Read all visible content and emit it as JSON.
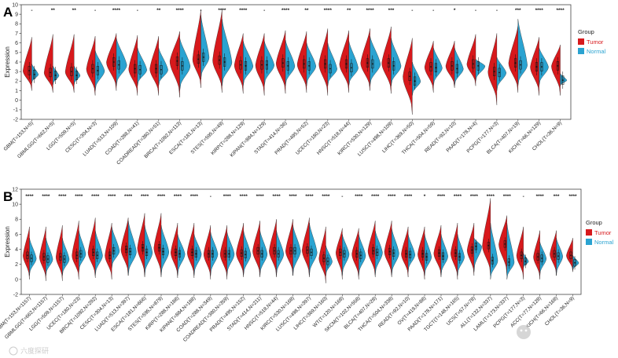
{
  "colors": {
    "tumor": "#d7191c",
    "normal": "#2aa3d1"
  },
  "watermark": {
    "right_text": "中科生信",
    "left_text": "六度探研"
  },
  "chart_data": [
    {
      "type": "violin",
      "panel_label": "A",
      "ylabel": "Expression",
      "ylim": [
        -2,
        10
      ],
      "yticks": [
        -2,
        -1,
        0,
        1,
        2,
        3,
        4,
        5,
        6,
        7,
        8,
        9,
        10
      ],
      "legend": {
        "title": "Group",
        "position": "right",
        "entries": [
          "Tumor",
          "Normal"
        ]
      },
      "categories": [
        "GBM(T=153,N=5)",
        "GBMLGG(T=662,N=5)",
        "LGG(T=509,N=5)",
        "CESC(T=304,N=3)",
        "LUAD(T=513,N=109)",
        "COAD(T=288,N=41)",
        "COADREAD(T=380,N=51)",
        "BRCA(T=1092,N=113)",
        "ESCA(T=181,N=13)",
        "STES(T=595,N=49)",
        "KIRP(T=288,N=129)",
        "KIPAN(T=884,N=129)",
        "STAD(T=414,N=36)",
        "PRAD(T=495,N=52)",
        "UCEC(T=180,N=23)",
        "HNSC(T=518,N=44)",
        "KIRC(T=530,N=129)",
        "LUSC(T=498,N=109)",
        "LIHC(T=369,N=50)",
        "THCA(T=504,N=59)",
        "READ(T=92,N=10)",
        "PAAD(T=178,N=4)",
        "PCPG(T=177,N=3)",
        "BLCA(T=407,N=19)",
        "KICH(T=66,N=129)",
        "CHOL(T=36,N=9)"
      ],
      "significance": [
        "-",
        "**",
        "**",
        "-",
        "****",
        "-",
        "**",
        "****",
        "-",
        "****",
        "****",
        "-",
        "****",
        "**",
        "****",
        "**",
        "****",
        "***",
        "-",
        "-",
        "*",
        "-",
        "-",
        "***",
        "****",
        "****"
      ],
      "series": [
        {
          "name": "Tumor",
          "median": [
            3.1,
            2.9,
            3.0,
            3.3,
            4.0,
            3.3,
            3.3,
            4.1,
            4.3,
            4.2,
            3.7,
            3.7,
            3.9,
            3.8,
            3.8,
            3.8,
            3.9,
            3.9,
            2.5,
            3.5,
            3.6,
            3.8,
            3.0,
            3.9,
            3.5,
            3.6
          ],
          "min": [
            1.0,
            0.8,
            0.8,
            0.5,
            1.0,
            0.5,
            0.5,
            0.3,
            1.3,
            0.8,
            0.7,
            0.5,
            0.7,
            0.8,
            0.5,
            0.8,
            1.0,
            0.7,
            -1.5,
            0.8,
            1.3,
            1.5,
            -0.5,
            0.8,
            0.5,
            0.5
          ],
          "max": [
            6.6,
            6.9,
            6.9,
            6.7,
            7.0,
            6.8,
            6.7,
            7.2,
            9.5,
            9.5,
            7.0,
            7.0,
            7.3,
            7.2,
            7.5,
            7.3,
            7.5,
            7.7,
            6.5,
            6.2,
            6.2,
            6.9,
            7.0,
            7.8,
            6.6,
            5.8
          ],
          "width": [
            0.8,
            0.8,
            0.8,
            0.8,
            0.9,
            0.8,
            0.8,
            0.9,
            0.75,
            0.85,
            0.8,
            0.8,
            0.85,
            0.85,
            0.8,
            0.85,
            0.85,
            0.85,
            0.85,
            0.8,
            0.8,
            0.8,
            0.8,
            0.85,
            0.8,
            0.8
          ]
        },
        {
          "name": "Normal",
          "median": [
            2.7,
            2.6,
            2.6,
            3.1,
            3.7,
            3.2,
            3.2,
            3.6,
            4.5,
            4.0,
            3.6,
            3.7,
            3.6,
            3.6,
            3.3,
            3.4,
            3.8,
            3.6,
            2.0,
            3.4,
            3.3,
            3.6,
            2.9,
            3.7,
            3.5,
            2.1
          ],
          "min": [
            1.8,
            1.6,
            1.6,
            1.0,
            1.5,
            1.5,
            1.5,
            1.0,
            2.2,
            1.5,
            1.5,
            1.5,
            1.5,
            1.5,
            1.5,
            1.5,
            1.5,
            1.5,
            0.5,
            1.5,
            1.5,
            2.0,
            1.0,
            1.5,
            1.5,
            1.5
          ],
          "max": [
            3.8,
            3.6,
            3.6,
            5.2,
            6.5,
            5.5,
            5.5,
            6.5,
            8.9,
            8.5,
            6.2,
            6.2,
            6.3,
            6.0,
            6.0,
            6.2,
            6.7,
            6.5,
            4.0,
            5.5,
            5.5,
            4.3,
            4.5,
            8.5,
            5.5,
            2.8
          ],
          "width": [
            0.6,
            0.55,
            0.55,
            0.85,
            0.95,
            0.85,
            0.85,
            0.95,
            0.75,
            0.9,
            0.9,
            0.9,
            0.85,
            0.85,
            0.85,
            0.85,
            0.95,
            0.9,
            0.75,
            0.8,
            0.8,
            0.85,
            0.85,
            0.85,
            0.85,
            0.6
          ]
        }
      ]
    },
    {
      "type": "violin",
      "panel_label": "B",
      "ylabel": "Expression",
      "ylim": [
        -2,
        12
      ],
      "yticks": [
        -2,
        0,
        2,
        4,
        6,
        8,
        10,
        12
      ],
      "legend": {
        "title": "Group",
        "position": "right",
        "entries": [
          "Tumor",
          "Normal"
        ]
      },
      "categories": [
        "GBM(T=153,N=1157)",
        "GBMLGG(T=662,N=1157)",
        "LGG(T=509,N=1157)",
        "UCEC(T=180,N=23)",
        "BRCA(T=1092,N=292)",
        "CESC(T=304,N=13)",
        "LUAD(T=513,N=397)",
        "ESCA(T=181,N=666)",
        "STES(T=595,N=879)",
        "KIRP(T=288,N=188)",
        "KIPAN(T=884,N=188)",
        "COAD(T=288,N=349)",
        "COADREAD(T=380,N=359)",
        "PRAD(T=495,N=152)",
        "STAD(T=414,N=211)",
        "HNSC(T=518,N=44)",
        "KIRC(T=530,N=168)",
        "LUSC(T=498,N=397)",
        "LIHC(T=369,N=160)",
        "WT(T=120,N=168)",
        "SKCM(T=102,N=558)",
        "BLCA(T=407,N=28)",
        "THCA(T=504,N=338)",
        "READ(T=92,N=10)",
        "OV(T=419,N=88)",
        "PAAD(T=178,N=171)",
        "TGCT(T=148,N=165)",
        "UCS(T=57,N=78)",
        "ALL(T=132,N=337)",
        "LAML(T=173,N=337)",
        "PCPG(T=177,N=3)",
        "ACC(T=77,N=128)",
        "KICH(T=66,N=168)",
        "CHOL(T=36,N=9)"
      ],
      "significance": [
        "****",
        "****",
        "****",
        "****",
        "****",
        "****",
        "****",
        "****",
        "****",
        "****",
        "****",
        "-",
        "****",
        "****",
        "****",
        "****",
        "****",
        "****",
        "****",
        "-",
        "****",
        "****",
        "****",
        "****",
        "*",
        "****",
        "****",
        "****",
        "****",
        "****",
        "-",
        "****",
        "***",
        "****"
      ],
      "series": [
        {
          "name": "Tumor",
          "median": [
            3.2,
            3.0,
            3.0,
            3.2,
            3.6,
            3.2,
            4.0,
            4.2,
            4.2,
            3.6,
            3.6,
            3.4,
            3.4,
            3.5,
            3.8,
            3.8,
            3.8,
            3.9,
            2.8,
            3.6,
            3.4,
            3.8,
            3.7,
            3.4,
            3.4,
            3.5,
            3.5,
            3.9,
            4.5,
            4.7,
            3.2,
            3.0,
            3.4,
            3.2
          ],
          "min": [
            0.0,
            -0.2,
            -0.2,
            0.0,
            0.2,
            0.0,
            0.5,
            0.3,
            0.3,
            0.2,
            0.2,
            0.0,
            0.0,
            0.3,
            0.3,
            0.3,
            0.5,
            0.3,
            -0.5,
            0.0,
            0.0,
            0.3,
            0.3,
            0.3,
            0.0,
            0.3,
            0.0,
            0.5,
            0.5,
            0.5,
            0.0,
            0.0,
            0.5,
            1.0
          ],
          "max": [
            7.0,
            7.0,
            7.2,
            7.8,
            8.2,
            7.5,
            8.2,
            8.8,
            8.8,
            7.5,
            7.5,
            7.2,
            7.2,
            7.5,
            7.8,
            8.0,
            8.0,
            8.2,
            7.0,
            6.8,
            6.8,
            7.8,
            7.8,
            7.0,
            7.0,
            7.2,
            7.5,
            7.5,
            10.8,
            8.5,
            7.0,
            6.5,
            6.5,
            5.5
          ],
          "width": [
            0.75,
            0.75,
            0.75,
            0.8,
            0.85,
            0.8,
            0.85,
            0.85,
            0.85,
            0.8,
            0.8,
            0.8,
            0.8,
            0.85,
            0.85,
            0.85,
            0.85,
            0.85,
            0.8,
            0.75,
            0.8,
            0.85,
            0.85,
            0.8,
            0.8,
            0.85,
            0.8,
            0.8,
            0.95,
            0.95,
            0.8,
            0.75,
            0.75,
            0.75
          ]
        },
        {
          "name": "Normal",
          "median": [
            2.8,
            2.7,
            2.7,
            3.4,
            3.2,
            3.8,
            3.7,
            3.6,
            3.7,
            3.4,
            3.4,
            3.4,
            3.4,
            3.3,
            3.4,
            3.4,
            3.8,
            3.6,
            2.4,
            3.4,
            3.2,
            3.6,
            3.5,
            3.3,
            3.0,
            3.1,
            3.0,
            4.4,
            2.5,
            2.3,
            2.4,
            2.8,
            3.1,
            2.2
          ],
          "min": [
            0.5,
            0.5,
            0.5,
            1.0,
            0.5,
            1.5,
            0.5,
            0.5,
            0.5,
            0.5,
            0.5,
            0.5,
            0.5,
            0.5,
            0.5,
            0.5,
            0.5,
            0.5,
            0.5,
            0.5,
            0.5,
            0.5,
            0.5,
            1.0,
            0.5,
            0.5,
            0.5,
            1.0,
            0.0,
            0.0,
            1.5,
            0.5,
            0.5,
            1.2
          ],
          "max": [
            5.5,
            5.5,
            5.5,
            6.5,
            6.5,
            7.0,
            7.8,
            7.2,
            7.2,
            6.0,
            6.0,
            6.3,
            6.3,
            6.5,
            6.5,
            6.5,
            7.2,
            7.5,
            4.5,
            6.0,
            6.0,
            6.5,
            6.8,
            6.0,
            6.0,
            6.0,
            6.0,
            5.5,
            7.5,
            7.5,
            3.5,
            5.0,
            5.5,
            3.2
          ],
          "width": [
            0.8,
            0.8,
            0.8,
            0.8,
            0.85,
            0.9,
            0.95,
            0.9,
            0.9,
            0.85,
            0.85,
            0.85,
            0.85,
            0.85,
            0.85,
            0.85,
            0.9,
            0.9,
            0.75,
            0.8,
            0.8,
            0.85,
            0.85,
            0.8,
            0.8,
            0.8,
            0.8,
            0.9,
            0.85,
            0.85,
            0.6,
            0.75,
            0.75,
            0.7
          ]
        }
      ]
    }
  ]
}
